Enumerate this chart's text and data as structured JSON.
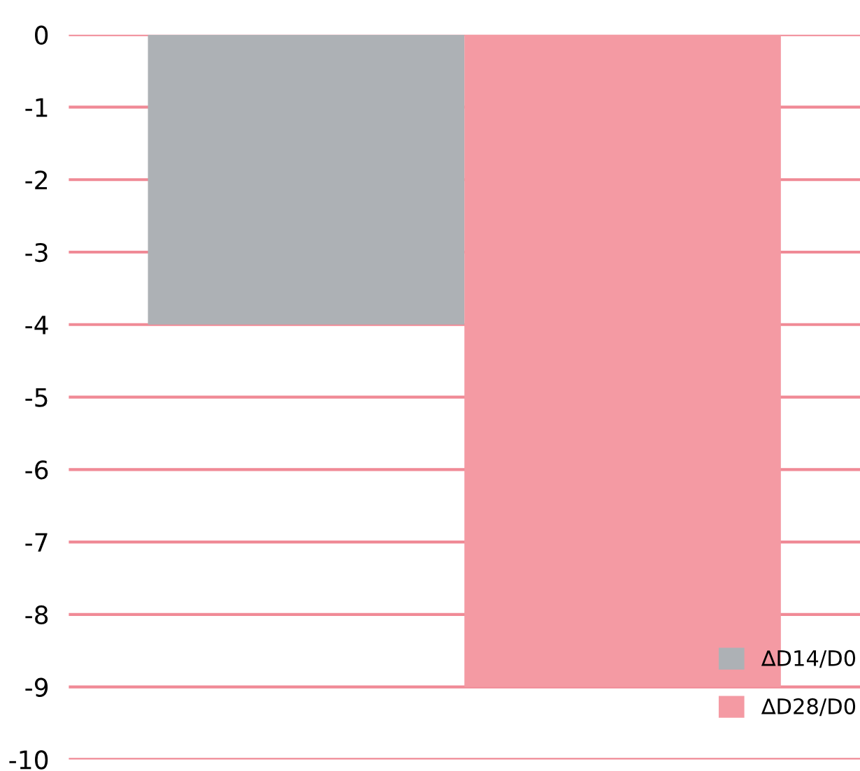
{
  "chart_data": {
    "type": "bar",
    "categories": [
      null
    ],
    "series": [
      {
        "name": "∆D14/D0",
        "color": "#adb1b5",
        "values": [
          -4
        ]
      },
      {
        "name": "∆D28/D0",
        "color": "#f49aa3",
        "values": [
          -9
        ]
      }
    ],
    "ylim": [
      -10,
      0
    ],
    "yticks": [
      -10,
      -9,
      -8,
      -7,
      -6,
      -5,
      -4,
      -3,
      -2,
      -1,
      0
    ],
    "grid": "y",
    "legend": "bottom right"
  }
}
